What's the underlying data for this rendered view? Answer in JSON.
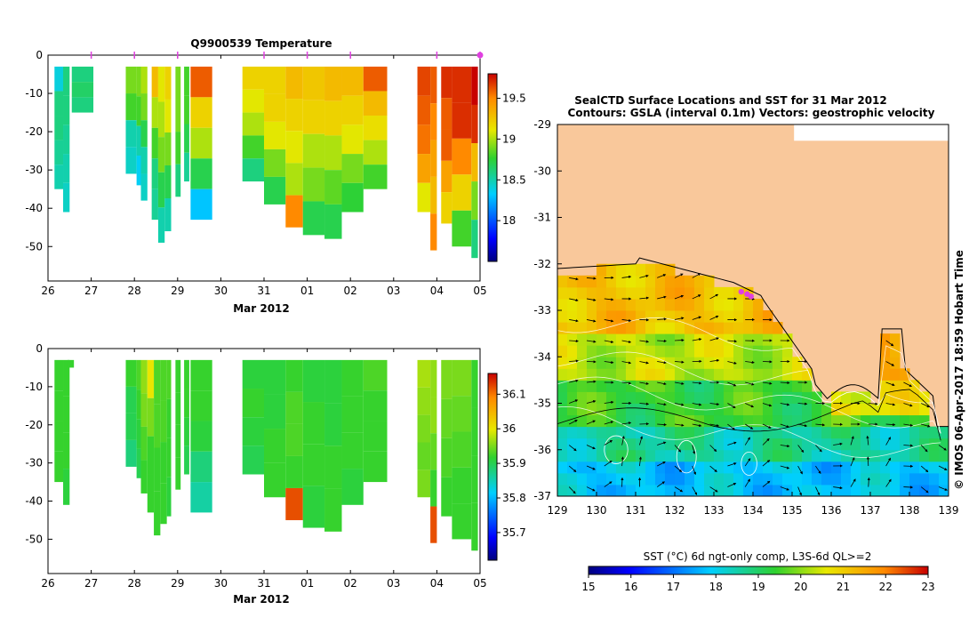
{
  "top_title": "Q9900539  Temperature",
  "date_label_top": "Mar 2012",
  "date_label_bottom": "Mar 2012",
  "map_title_line1": "SealCTD Surface Locations and SST for 31 Mar 2012",
  "map_title_line2": "Contours: GSLA (interval 0.1m) Vectors: geostrophic velocity",
  "stamp": "© IMOS 06-Apr-2017 18:59 Hobart Time",
  "sst_label": "SST (°C) 6d ngt-only comp, L3S-6d QL>=2",
  "colors": {
    "marker": "#e040e0",
    "land": "#f9c89b",
    "coast": "#000000"
  },
  "chart_data": [
    {
      "type": "heatmap",
      "name": "temperature-section",
      "title": "Q9900539  Temperature",
      "xlabel": "Mar 2012",
      "xticks": [
        "26",
        "27",
        "28",
        "29",
        "30",
        "31",
        "01",
        "02",
        "03",
        "04",
        "05"
      ],
      "yticks": [
        "0",
        "-10",
        "-20",
        "-30",
        "-40",
        "-50"
      ],
      "ylim": [
        -59,
        0
      ],
      "colorbar_ticks": [
        "19.5",
        "19",
        "18.5",
        "18"
      ],
      "colorbar_range": [
        17.5,
        19.8
      ],
      "profile_markers_day": [
        1,
        2,
        3,
        5,
        6,
        7,
        9,
        10
      ],
      "profiles": [
        {
          "t": 0.15,
          "w": 0.2,
          "d": 35,
          "v": [
            18.4,
            18.6,
            18.6,
            18.55,
            18.5
          ]
        },
        {
          "t": 0.35,
          "w": 0.15,
          "d": 41,
          "v": [
            18.6,
            18.6,
            18.55,
            18.5,
            18.45
          ]
        },
        {
          "t": 0.55,
          "w": 0.5,
          "d": 15,
          "v": [
            18.6,
            18.65,
            18.6
          ]
        },
        {
          "t": 1.8,
          "w": 0.25,
          "d": 31,
          "v": [
            18.9,
            18.8,
            18.5,
            18.45
          ]
        },
        {
          "t": 2.05,
          "w": 0.1,
          "d": 34,
          "v": [
            18.9,
            18.8,
            18.5,
            18.35
          ]
        },
        {
          "t": 2.15,
          "w": 0.15,
          "d": 38,
          "v": [
            19.0,
            18.9,
            18.7,
            18.5,
            18.45
          ]
        },
        {
          "t": 2.4,
          "w": 0.15,
          "d": 43,
          "v": [
            19.3,
            19.0,
            18.8,
            18.6,
            18.55
          ]
        },
        {
          "t": 2.55,
          "w": 0.15,
          "d": 49,
          "v": [
            19.1,
            19.0,
            18.9,
            18.7,
            18.5
          ]
        },
        {
          "t": 2.7,
          "w": 0.15,
          "d": 46,
          "v": [
            19.2,
            19.1,
            18.9,
            18.7,
            18.5
          ]
        },
        {
          "t": 2.95,
          "w": 0.12,
          "d": 37,
          "v": [
            18.9,
            18.9,
            18.8,
            18.6
          ]
        },
        {
          "t": 3.15,
          "w": 0.12,
          "d": 33,
          "v": [
            18.8,
            18.8,
            18.7,
            18.55
          ]
        },
        {
          "t": 3.3,
          "w": 0.5,
          "d": 43,
          "v": [
            19.6,
            19.2,
            19.0,
            18.7,
            18.3
          ]
        },
        {
          "t": 4.5,
          "w": 0.5,
          "d": 33,
          "v": [
            19.2,
            19.1,
            19.0,
            18.8,
            18.6
          ]
        },
        {
          "t": 5.0,
          "w": 0.5,
          "d": 39,
          "v": [
            19.2,
            19.2,
            19.1,
            18.9,
            18.7
          ]
        },
        {
          "t": 5.5,
          "w": 0.4,
          "d": 45,
          "v": [
            19.3,
            19.2,
            19.1,
            19.0,
            19.5
          ]
        },
        {
          "t": 5.9,
          "w": 0.5,
          "d": 47,
          "v": [
            19.25,
            19.2,
            19.0,
            18.9,
            18.7
          ]
        },
        {
          "t": 6.4,
          "w": 0.4,
          "d": 48,
          "v": [
            19.3,
            19.2,
            19.0,
            18.85,
            18.7
          ]
        },
        {
          "t": 6.8,
          "w": 0.5,
          "d": 41,
          "v": [
            19.3,
            19.2,
            19.1,
            18.9,
            18.75
          ]
        },
        {
          "t": 7.3,
          "w": 0.55,
          "d": 35,
          "v": [
            19.6,
            19.3,
            19.15,
            19.0,
            18.8
          ]
        },
        {
          "t": 8.55,
          "w": 0.3,
          "d": 41,
          "v": [
            19.65,
            19.6,
            19.55,
            19.4,
            19.1
          ]
        },
        {
          "t": 8.85,
          "w": 0.15,
          "d": 51,
          "v": [
            19.6,
            19.5,
            19.4,
            19.3,
            19.5
          ]
        },
        {
          "t": 9.1,
          "w": 0.25,
          "d": 44,
          "v": [
            19.7,
            19.6,
            19.6,
            19.4,
            19.2
          ]
        },
        {
          "t": 9.35,
          "w": 0.45,
          "d": 50,
          "v": [
            19.7,
            19.7,
            19.5,
            19.2,
            18.8
          ]
        },
        {
          "t": 9.8,
          "w": 0.15,
          "d": 53,
          "v": [
            19.8,
            19.7,
            19.3,
            18.9,
            18.6
          ]
        }
      ]
    },
    {
      "type": "heatmap",
      "name": "salinity-section",
      "title": "",
      "xlabel": "Mar 2012",
      "xticks": [
        "26",
        "27",
        "28",
        "29",
        "30",
        "31",
        "01",
        "02",
        "03",
        "04",
        "05"
      ],
      "yticks": [
        "0",
        "-10",
        "-20",
        "-30",
        "-40",
        "-50"
      ],
      "ylim": [
        -59,
        0
      ],
      "colorbar_ticks": [
        "36.1",
        "36",
        "35.9",
        "35.8",
        "35.7"
      ],
      "colorbar_range": [
        35.62,
        36.16
      ],
      "profiles": [
        {
          "t": 0.15,
          "w": 0.2,
          "d": 35,
          "v": [
            35.92,
            35.92,
            35.92,
            35.92
          ]
        },
        {
          "t": 0.35,
          "w": 0.15,
          "d": 41,
          "v": [
            35.92,
            35.92,
            35.92,
            35.91
          ]
        },
        {
          "t": 0.45,
          "w": 0.15,
          "d": 5,
          "v": [
            35.92
          ]
        },
        {
          "t": 1.8,
          "w": 0.25,
          "d": 31,
          "v": [
            35.92,
            35.9,
            35.9,
            35.88
          ]
        },
        {
          "t": 2.05,
          "w": 0.1,
          "d": 34,
          "v": [
            35.93,
            35.92,
            35.91,
            35.9
          ]
        },
        {
          "t": 2.15,
          "w": 0.15,
          "d": 38,
          "v": [
            35.96,
            35.95,
            35.93,
            35.92
          ]
        },
        {
          "t": 2.3,
          "w": 0.15,
          "d": 43,
          "v": [
            36.0,
            35.95,
            35.92,
            35.92
          ]
        },
        {
          "t": 2.45,
          "w": 0.15,
          "d": 49,
          "v": [
            35.93,
            35.93,
            35.92,
            35.92
          ]
        },
        {
          "t": 2.6,
          "w": 0.15,
          "d": 46,
          "v": [
            35.93,
            35.93,
            35.92,
            35.92
          ]
        },
        {
          "t": 2.75,
          "w": 0.1,
          "d": 44,
          "v": [
            35.93,
            35.92,
            35.92,
            35.91
          ]
        },
        {
          "t": 2.95,
          "w": 0.12,
          "d": 37,
          "v": [
            35.92,
            35.92,
            35.92,
            35.92
          ]
        },
        {
          "t": 3.15,
          "w": 0.12,
          "d": 33,
          "v": [
            35.92,
            35.92,
            35.91,
            35.9
          ]
        },
        {
          "t": 3.3,
          "w": 0.5,
          "d": 43,
          "v": [
            35.92,
            35.92,
            35.91,
            35.88,
            35.86
          ]
        },
        {
          "t": 4.5,
          "w": 0.5,
          "d": 33,
          "v": [
            35.91,
            35.92,
            35.91,
            35.9
          ]
        },
        {
          "t": 5.0,
          "w": 0.5,
          "d": 39,
          "v": [
            35.91,
            35.91,
            35.92,
            35.92
          ]
        },
        {
          "t": 5.5,
          "w": 0.4,
          "d": 45,
          "v": [
            35.92,
            35.93,
            35.93,
            35.92,
            36.12
          ]
        },
        {
          "t": 5.9,
          "w": 0.5,
          "d": 47,
          "v": [
            35.91,
            35.92,
            35.92,
            35.91
          ]
        },
        {
          "t": 6.4,
          "w": 0.4,
          "d": 48,
          "v": [
            35.91,
            35.91,
            35.92,
            35.92
          ]
        },
        {
          "t": 6.8,
          "w": 0.5,
          "d": 41,
          "v": [
            35.92,
            35.92,
            35.92,
            35.91
          ]
        },
        {
          "t": 7.3,
          "w": 0.55,
          "d": 35,
          "v": [
            35.93,
            35.92,
            35.92,
            35.92
          ]
        },
        {
          "t": 8.55,
          "w": 0.3,
          "d": 39,
          "v": [
            35.97,
            35.96,
            35.95,
            35.94,
            35.95
          ]
        },
        {
          "t": 8.85,
          "w": 0.15,
          "d": 51,
          "v": [
            35.96,
            35.96,
            35.94,
            35.92,
            36.12
          ]
        },
        {
          "t": 9.1,
          "w": 0.25,
          "d": 44,
          "v": [
            35.95,
            35.94,
            35.93,
            35.92
          ]
        },
        {
          "t": 9.35,
          "w": 0.45,
          "d": 50,
          "v": [
            35.95,
            35.94,
            35.93,
            35.92,
            35.92
          ]
        },
        {
          "t": 9.8,
          "w": 0.15,
          "d": 53,
          "v": [
            35.92,
            35.92,
            35.92,
            35.92
          ]
        }
      ]
    },
    {
      "type": "heatmap",
      "name": "sst-map",
      "title": "SealCTD Surface Locations and SST for 31 Mar 2012",
      "xticks": [
        "129",
        "130",
        "131",
        "132",
        "133",
        "134",
        "135",
        "136",
        "137",
        "138",
        "139"
      ],
      "yticks": [
        "-29",
        "-30",
        "-31",
        "-32",
        "-33",
        "-34",
        "-35",
        "-36",
        "-37"
      ],
      "xlim": [
        129,
        139
      ],
      "ylim": [
        -37,
        -29
      ],
      "seal_positions": [
        [
          133.7,
          -32.6
        ],
        [
          133.85,
          -32.65
        ],
        [
          133.95,
          -32.7
        ]
      ]
    },
    {
      "type": "bar",
      "name": "sst-colorbar",
      "xlabel": "SST (°C) 6d ngt-only comp, L3S-6d QL>=2",
      "ticks": [
        "15",
        "16",
        "17",
        "18",
        "19",
        "20",
        "21",
        "22",
        "23"
      ],
      "range": [
        15,
        23
      ]
    }
  ]
}
